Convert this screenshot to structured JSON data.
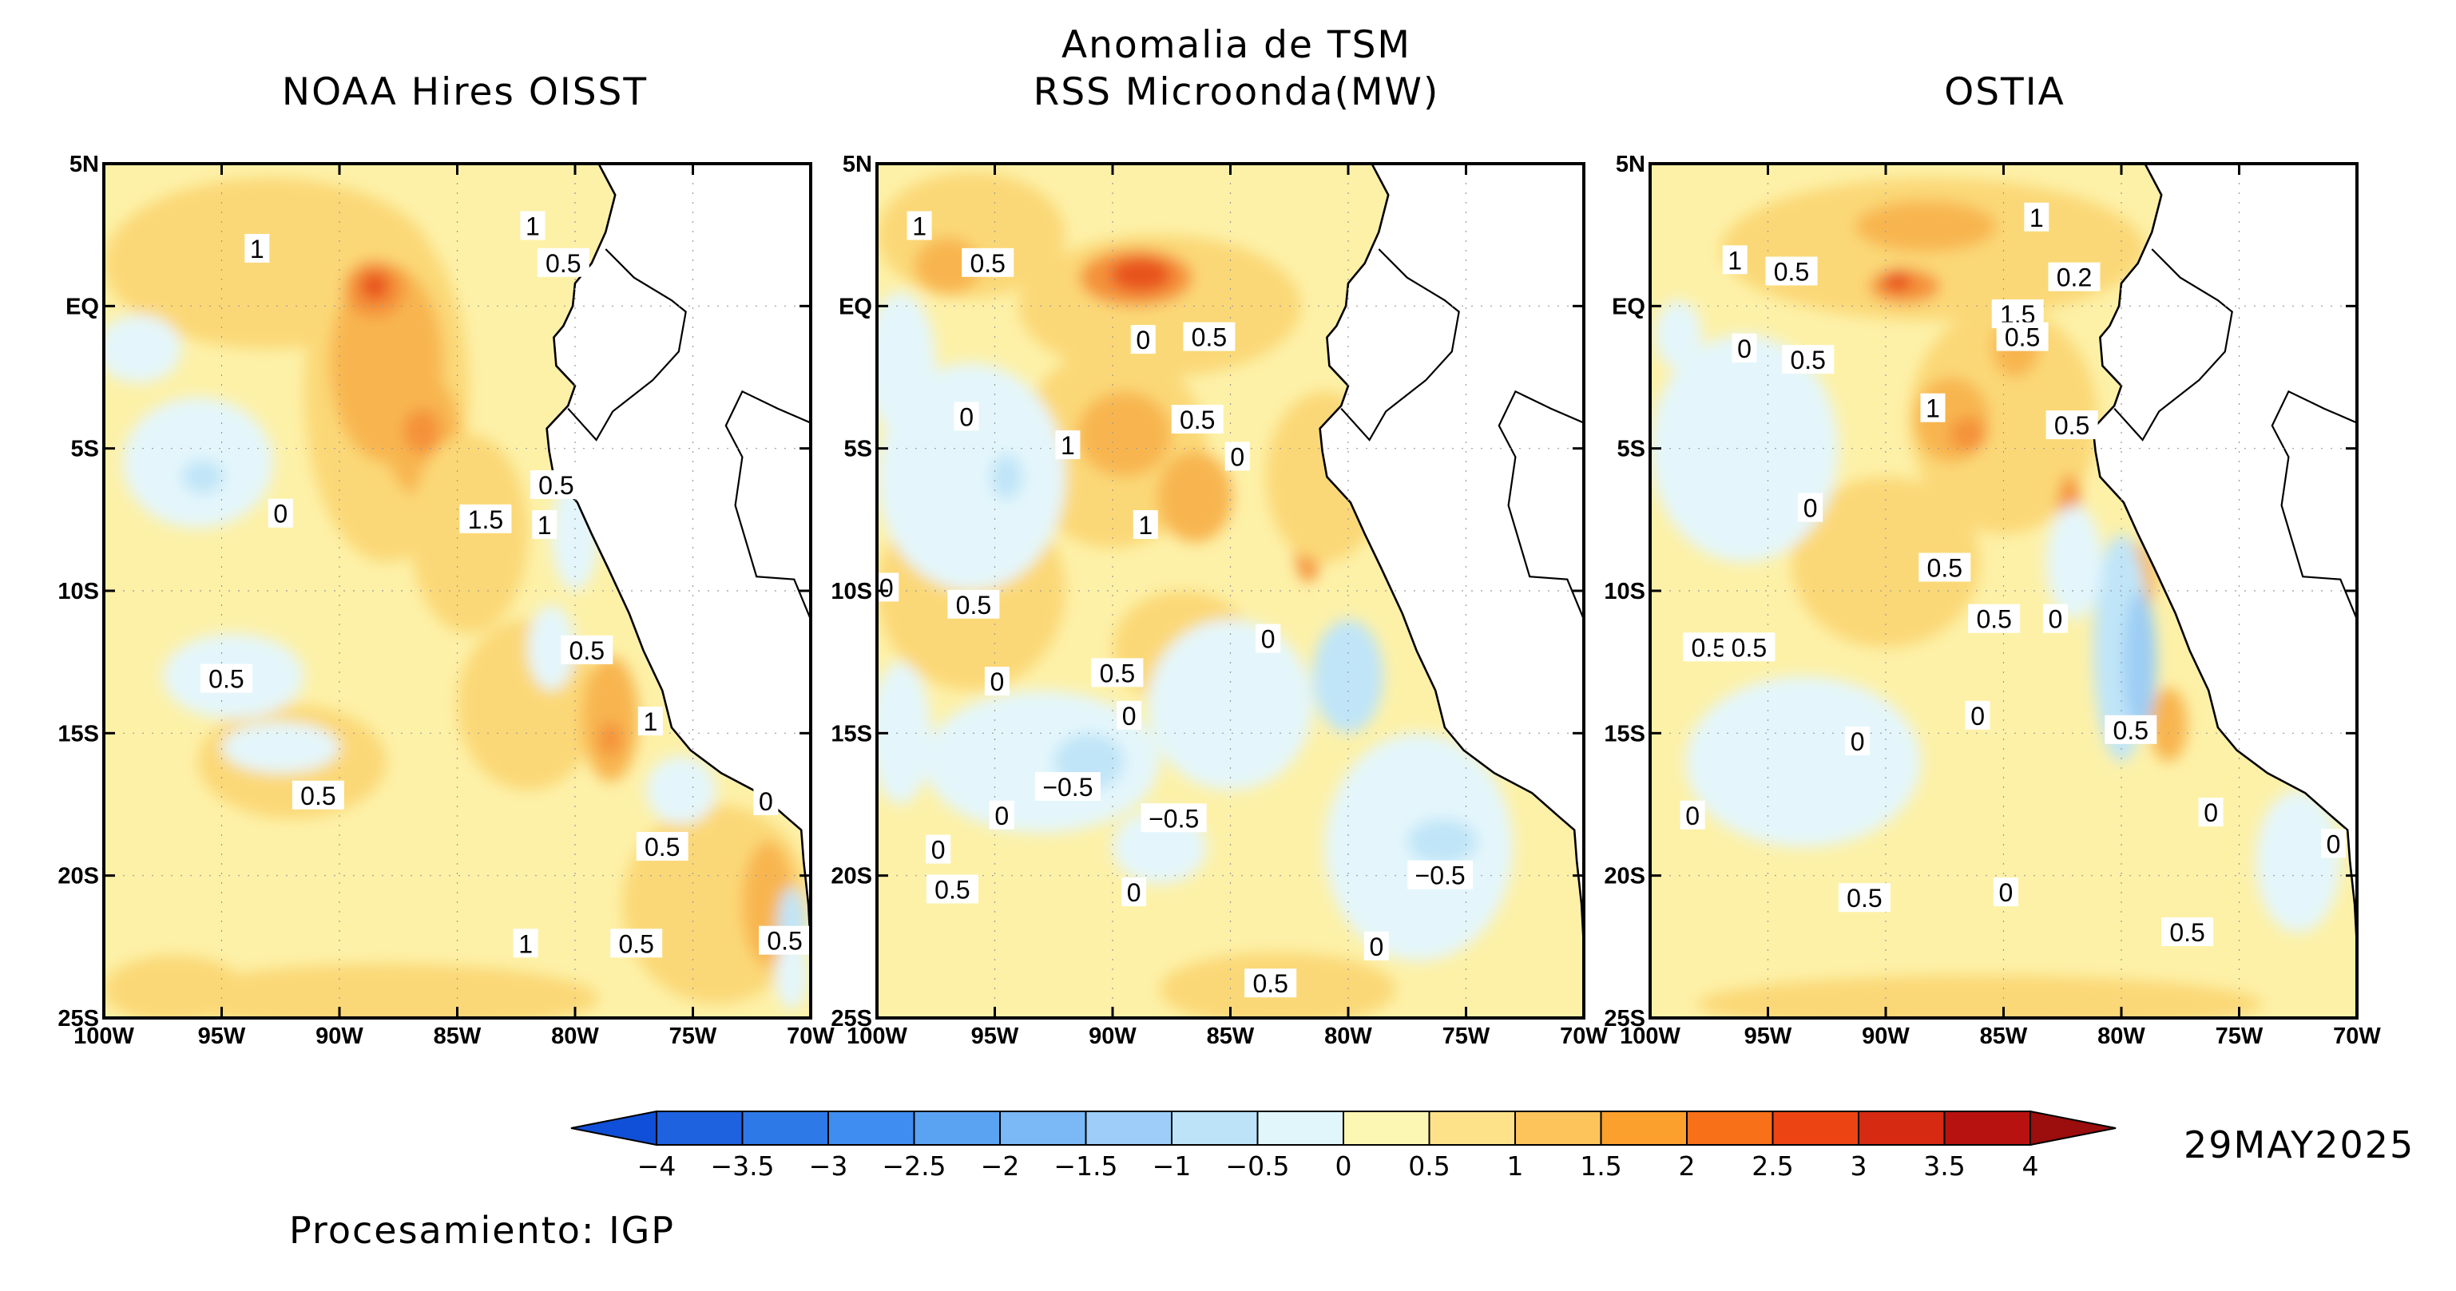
{
  "figure": {
    "main_title_line1": "Anomalia de TSM",
    "date": "29MAY2025",
    "credit": "Procesamiento: IGP"
  },
  "axes": {
    "lat_ticks": [
      "5N",
      "EQ",
      "5S",
      "10S",
      "15S",
      "20S",
      "25S"
    ],
    "lon_ticks": [
      "100W",
      "95W",
      "90W",
      "85W",
      "80W",
      "75W",
      "70W"
    ],
    "lat_range_deg": [
      -25,
      5
    ],
    "lon_range_deg": [
      -100,
      -70
    ]
  },
  "panels": [
    {
      "title": "NOAA Hires OISST",
      "contour_labels": [
        {
          "text": "1",
          "lon": -93.5,
          "lat": 2.0
        },
        {
          "text": "1",
          "lon": -81.8,
          "lat": 2.8
        },
        {
          "text": "0.5",
          "lon": -80.5,
          "lat": 1.5
        },
        {
          "text": "0",
          "lon": -92.5,
          "lat": -7.3
        },
        {
          "text": "0.5",
          "lon": -80.8,
          "lat": -6.3
        },
        {
          "text": "1.5",
          "lon": -83.8,
          "lat": -7.5
        },
        {
          "text": "1",
          "lon": -81.3,
          "lat": -7.7
        },
        {
          "text": "0.5",
          "lon": -79.5,
          "lat": -12.1
        },
        {
          "text": "0.5",
          "lon": -94.8,
          "lat": -13.1
        },
        {
          "text": "1",
          "lon": -76.8,
          "lat": -14.6
        },
        {
          "text": "0.5",
          "lon": -90.9,
          "lat": -17.2
        },
        {
          "text": "0",
          "lon": -71.9,
          "lat": -17.4
        },
        {
          "text": "0.5",
          "lon": -76.3,
          "lat": -19.0
        },
        {
          "text": "1",
          "lon": -82.1,
          "lat": -22.4
        },
        {
          "text": "0.5",
          "lon": -77.4,
          "lat": -22.4
        },
        {
          "text": "0.5",
          "lon": -71.1,
          "lat": -22.3
        }
      ]
    },
    {
      "title": "RSS Microonda(MW)",
      "contour_labels": [
        {
          "text": "1",
          "lon": -98.2,
          "lat": 2.8
        },
        {
          "text": "0.5",
          "lon": -95.3,
          "lat": 1.5
        },
        {
          "text": "0",
          "lon": -88.7,
          "lat": -1.2
        },
        {
          "text": "0.5",
          "lon": -85.9,
          "lat": -1.1
        },
        {
          "text": "0",
          "lon": -96.2,
          "lat": -3.9
        },
        {
          "text": "1",
          "lon": -91.9,
          "lat": -4.9
        },
        {
          "text": "0.5",
          "lon": -86.4,
          "lat": -4.0
        },
        {
          "text": "0",
          "lon": -84.7,
          "lat": -5.3
        },
        {
          "text": "1",
          "lon": -88.6,
          "lat": -7.7
        },
        {
          "text": "0",
          "lon": -99.6,
          "lat": -9.9
        },
        {
          "text": "0.5",
          "lon": -95.9,
          "lat": -10.5
        },
        {
          "text": "0",
          "lon": -83.4,
          "lat": -11.7
        },
        {
          "text": "0.5",
          "lon": -89.8,
          "lat": -12.9
        },
        {
          "text": "0",
          "lon": -94.9,
          "lat": -13.2
        },
        {
          "text": "0",
          "lon": -89.3,
          "lat": -14.4
        },
        {
          "text": "−0.5",
          "lon": -91.9,
          "lat": -16.9
        },
        {
          "text": "−0.5",
          "lon": -87.4,
          "lat": -18.0
        },
        {
          "text": "0",
          "lon": -94.7,
          "lat": -17.9
        },
        {
          "text": "0",
          "lon": -97.4,
          "lat": -19.1
        },
        {
          "text": "−0.5",
          "lon": -76.1,
          "lat": -20.0
        },
        {
          "text": "0.5",
          "lon": -96.8,
          "lat": -20.5
        },
        {
          "text": "0",
          "lon": -89.1,
          "lat": -20.6
        },
        {
          "text": "0",
          "lon": -78.8,
          "lat": -22.5
        },
        {
          "text": "0.5",
          "lon": -83.3,
          "lat": -23.8
        }
      ]
    },
    {
      "title": "OSTIA",
      "contour_labels": [
        {
          "text": "1",
          "lon": -83.6,
          "lat": 3.1
        },
        {
          "text": "1",
          "lon": -96.4,
          "lat": 1.6
        },
        {
          "text": "0.5",
          "lon": -94.0,
          "lat": 1.2
        },
        {
          "text": "0.2",
          "lon": -82.0,
          "lat": 1.0
        },
        {
          "text": "1.5",
          "lon": -84.4,
          "lat": -0.3
        },
        {
          "text": "0.5",
          "lon": -84.2,
          "lat": -1.1
        },
        {
          "text": "0",
          "lon": -96.0,
          "lat": -1.5
        },
        {
          "text": "0.5",
          "lon": -93.3,
          "lat": -1.9
        },
        {
          "text": "1",
          "lon": -88.0,
          "lat": -3.6
        },
        {
          "text": "0.5",
          "lon": -82.1,
          "lat": -4.2
        },
        {
          "text": "0",
          "lon": -93.2,
          "lat": -7.1
        },
        {
          "text": "0.5",
          "lon": -87.5,
          "lat": -9.2
        },
        {
          "text": "0",
          "lon": -82.8,
          "lat": -11.0
        },
        {
          "text": "0.5",
          "lon": -85.4,
          "lat": -11.0
        },
        {
          "text": "0.5",
          "lon": -97.5,
          "lat": -12.0
        },
        {
          "text": "0.5",
          "lon": -95.8,
          "lat": -12.0
        },
        {
          "text": "0",
          "lon": -91.2,
          "lat": -15.3
        },
        {
          "text": "0",
          "lon": -86.1,
          "lat": -14.4
        },
        {
          "text": "0.5",
          "lon": -79.6,
          "lat": -14.9
        },
        {
          "text": "0",
          "lon": -98.2,
          "lat": -17.9
        },
        {
          "text": "0",
          "lon": -76.2,
          "lat": -17.8
        },
        {
          "text": "0",
          "lon": -71.0,
          "lat": -18.9
        },
        {
          "text": "0.5",
          "lon": -90.9,
          "lat": -20.8
        },
        {
          "text": "0",
          "lon": -84.9,
          "lat": -20.6
        },
        {
          "text": "0.5",
          "lon": -77.2,
          "lat": -22.0
        }
      ]
    }
  ],
  "colorbar": {
    "labels": [
      "−4",
      "−3.5",
      "−3",
      "−2.5",
      "−2",
      "−1.5",
      "−1",
      "−0.5",
      "0",
      "0.5",
      "1",
      "1.5",
      "2",
      "2.5",
      "3",
      "3.5",
      "4"
    ],
    "colors": [
      "#1e62df",
      "#2e79e8",
      "#3f8df0",
      "#5aa3f2",
      "#7bb8f6",
      "#9dcdf8",
      "#bce3f8",
      "#e1f6fb",
      "#fdf7b4",
      "#fde28a",
      "#fcc45a",
      "#fb9f2d",
      "#f87017",
      "#ec4412",
      "#d72a12",
      "#b81210"
    ],
    "extend_low_color": "#1050d8",
    "extend_high_color": "#9c0d0d"
  },
  "colors": {
    "land": "#ffffff",
    "ocean_base": "#fdf1a8",
    "warm_1": "#fbd877",
    "warm_2": "#f8b550",
    "warm_3": "#f4923a",
    "warm_4": "#e8531f",
    "cool_1": "#e4f6fb",
    "cool_2": "#c0e5f8",
    "cool_3": "#9ccdf4"
  }
}
